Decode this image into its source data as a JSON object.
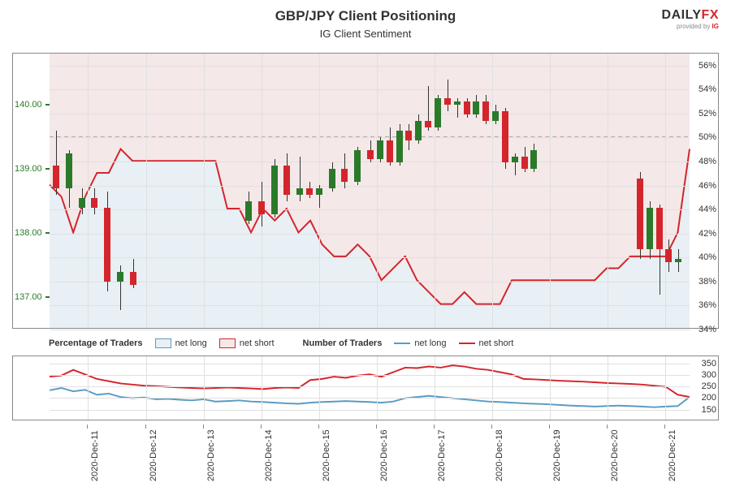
{
  "title": "GBP/JPY Client Positioning",
  "subtitle": "IG Client Sentiment",
  "logo": {
    "daily": "DAILY",
    "fx": "FX",
    "provided": "provided by ",
    "ig": "IG"
  },
  "main_chart": {
    "left_axis": {
      "min": 136.5,
      "max": 140.8,
      "ticks": [
        137.0,
        138.0,
        139.0,
        140.0
      ],
      "color": "#2a7a2a",
      "fontsize": 11
    },
    "right_axis": {
      "min": 34,
      "max": 57,
      "ticks": [
        34,
        36,
        38,
        40,
        42,
        44,
        46,
        48,
        50,
        52,
        54,
        56
      ],
      "suffix": "%",
      "fontsize": 11
    },
    "fifty_pct": 50,
    "bg_long": "#e8f0f5",
    "bg_short": "#f5e8e8",
    "line_color": "#d4252c",
    "line_width": 2,
    "grid_color": "#e0e0e0",
    "pct_long_series": [
      46,
      45,
      42,
      45,
      47,
      47,
      49,
      48,
      48,
      48,
      48,
      48,
      48,
      48,
      48,
      44,
      44,
      42,
      44,
      43,
      44,
      42,
      43,
      41,
      40,
      40,
      41,
      40,
      38,
      39,
      40,
      38,
      37,
      36,
      36,
      37,
      36,
      36,
      36,
      38,
      38,
      38,
      38,
      38,
      38,
      38,
      38,
      39,
      39,
      40,
      40,
      40,
      40,
      42,
      49
    ],
    "candles": [
      {
        "x": 0.01,
        "o": 139.05,
        "h": 139.6,
        "l": 138.6,
        "c": 138.7
      },
      {
        "x": 0.03,
        "o": 138.7,
        "h": 139.3,
        "l": 138.4,
        "c": 139.25
      },
      {
        "x": 0.05,
        "o": 138.4,
        "h": 138.7,
        "l": 138.3,
        "c": 138.55
      },
      {
        "x": 0.07,
        "o": 138.55,
        "h": 138.7,
        "l": 138.3,
        "c": 138.4
      },
      {
        "x": 0.09,
        "o": 138.4,
        "h": 138.65,
        "l": 137.1,
        "c": 137.25
      },
      {
        "x": 0.11,
        "o": 137.25,
        "h": 137.5,
        "l": 136.8,
        "c": 137.4
      },
      {
        "x": 0.13,
        "o": 137.4,
        "h": 137.6,
        "l": 137.15,
        "c": 137.2
      },
      {
        "x": 0.31,
        "o": 138.2,
        "h": 138.65,
        "l": 138.15,
        "c": 138.5
      },
      {
        "x": 0.33,
        "o": 138.5,
        "h": 138.8,
        "l": 138.1,
        "c": 138.3
      },
      {
        "x": 0.35,
        "o": 138.3,
        "h": 139.15,
        "l": 138.25,
        "c": 139.05
      },
      {
        "x": 0.37,
        "o": 139.05,
        "h": 139.25,
        "l": 138.5,
        "c": 138.6
      },
      {
        "x": 0.39,
        "o": 138.6,
        "h": 139.2,
        "l": 138.5,
        "c": 138.7
      },
      {
        "x": 0.405,
        "o": 138.7,
        "h": 138.8,
        "l": 138.55,
        "c": 138.6
      },
      {
        "x": 0.42,
        "o": 138.6,
        "h": 138.75,
        "l": 138.4,
        "c": 138.7
      },
      {
        "x": 0.44,
        "o": 138.7,
        "h": 139.1,
        "l": 138.65,
        "c": 139.0
      },
      {
        "x": 0.46,
        "o": 139.0,
        "h": 139.25,
        "l": 138.7,
        "c": 138.8
      },
      {
        "x": 0.48,
        "o": 138.8,
        "h": 139.35,
        "l": 138.75,
        "c": 139.3
      },
      {
        "x": 0.5,
        "o": 139.3,
        "h": 139.45,
        "l": 139.1,
        "c": 139.15
      },
      {
        "x": 0.515,
        "o": 139.15,
        "h": 139.5,
        "l": 139.1,
        "c": 139.45
      },
      {
        "x": 0.53,
        "o": 139.45,
        "h": 139.65,
        "l": 139.05,
        "c": 139.1
      },
      {
        "x": 0.545,
        "o": 139.1,
        "h": 139.7,
        "l": 139.05,
        "c": 139.6
      },
      {
        "x": 0.56,
        "o": 139.6,
        "h": 139.7,
        "l": 139.3,
        "c": 139.45
      },
      {
        "x": 0.575,
        "o": 139.45,
        "h": 139.85,
        "l": 139.4,
        "c": 139.75
      },
      {
        "x": 0.59,
        "o": 139.75,
        "h": 140.3,
        "l": 139.6,
        "c": 139.65
      },
      {
        "x": 0.605,
        "o": 139.65,
        "h": 140.15,
        "l": 139.6,
        "c": 140.1
      },
      {
        "x": 0.62,
        "o": 140.1,
        "h": 140.4,
        "l": 139.9,
        "c": 140.0
      },
      {
        "x": 0.635,
        "o": 140.0,
        "h": 140.1,
        "l": 139.8,
        "c": 140.05
      },
      {
        "x": 0.65,
        "o": 140.05,
        "h": 140.1,
        "l": 139.8,
        "c": 139.85
      },
      {
        "x": 0.665,
        "o": 139.85,
        "h": 140.15,
        "l": 139.8,
        "c": 140.05
      },
      {
        "x": 0.68,
        "o": 140.05,
        "h": 140.15,
        "l": 139.7,
        "c": 139.75
      },
      {
        "x": 0.695,
        "o": 139.75,
        "h": 140.0,
        "l": 139.7,
        "c": 139.9
      },
      {
        "x": 0.71,
        "o": 139.9,
        "h": 139.95,
        "l": 139.0,
        "c": 139.1
      },
      {
        "x": 0.725,
        "o": 139.1,
        "h": 139.25,
        "l": 138.9,
        "c": 139.2
      },
      {
        "x": 0.74,
        "o": 139.2,
        "h": 139.35,
        "l": 138.95,
        "c": 139.0
      },
      {
        "x": 0.755,
        "o": 139.0,
        "h": 139.4,
        "l": 138.95,
        "c": 139.3
      },
      {
        "x": 0.92,
        "o": 138.85,
        "h": 138.95,
        "l": 137.6,
        "c": 137.75
      },
      {
        "x": 0.935,
        "o": 137.75,
        "h": 138.5,
        "l": 137.6,
        "c": 138.4
      },
      {
        "x": 0.95,
        "o": 138.4,
        "h": 138.45,
        "l": 137.05,
        "c": 137.75
      },
      {
        "x": 0.965,
        "o": 137.75,
        "h": 137.9,
        "l": 137.4,
        "c": 137.55
      },
      {
        "x": 0.98,
        "o": 137.55,
        "h": 137.75,
        "l": 137.4,
        "c": 137.6
      }
    ],
    "candle_width": 8,
    "candle_green": "#2a7a2a",
    "candle_red": "#d4252c"
  },
  "legend": {
    "pct_label": "Percentage of Traders",
    "num_label": "Number of Traders",
    "net_long": "net long",
    "net_short": "net short"
  },
  "sub_chart": {
    "right_axis": {
      "min": 100,
      "max": 380,
      "ticks": [
        150,
        200,
        250,
        300,
        350
      ],
      "fontsize": 11
    },
    "long_color": "#5a9bc4",
    "short_color": "#d4252c",
    "line_width": 2,
    "grid_color": "#e0e0e0",
    "long_series": [
      230,
      240,
      225,
      232,
      210,
      215,
      200,
      195,
      198,
      190,
      192,
      188,
      185,
      190,
      180,
      182,
      185,
      180,
      178,
      175,
      172,
      170,
      175,
      178,
      180,
      182,
      180,
      178,
      175,
      180,
      195,
      200,
      205,
      200,
      195,
      190,
      185,
      180,
      178,
      175,
      172,
      170,
      168,
      165,
      162,
      160,
      158,
      160,
      162,
      160,
      158,
      155,
      158,
      160,
      200
    ],
    "short_series": [
      290,
      295,
      320,
      300,
      280,
      270,
      260,
      255,
      250,
      248,
      245,
      242,
      240,
      238,
      240,
      242,
      240,
      238,
      235,
      240,
      242,
      240,
      275,
      280,
      290,
      285,
      295,
      300,
      290,
      310,
      330,
      328,
      335,
      330,
      340,
      335,
      325,
      320,
      310,
      300,
      280,
      278,
      275,
      272,
      270,
      268,
      265,
      262,
      260,
      258,
      255,
      250,
      245,
      210,
      200
    ]
  },
  "x_axis": {
    "labels": [
      "2020-Dec-11",
      "2020-Dec-12",
      "2020-Dec-13",
      "2020-Dec-14",
      "2020-Dec-15",
      "2020-Dec-16",
      "2020-Dec-17",
      "2020-Dec-18",
      "2020-Dec-19",
      "2020-Dec-20",
      "2020-Dec-21"
    ],
    "positions": [
      0.06,
      0.15,
      0.24,
      0.33,
      0.42,
      0.51,
      0.6,
      0.69,
      0.78,
      0.87,
      0.96
    ],
    "fontsize": 11
  }
}
